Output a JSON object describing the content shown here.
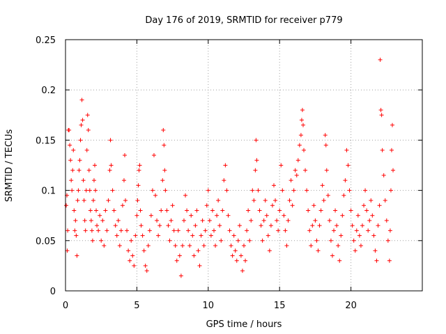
{
  "chart_data": {
    "type": "scatter",
    "title": "Day 176 of 2019, SRMTID for receiver p779",
    "xlabel": "GPS time / hours",
    "ylabel": "SRMTID / TECUs",
    "xlim": [
      0,
      25
    ],
    "ylim": [
      0,
      0.25
    ],
    "xticks": [
      0,
      5,
      10,
      15,
      20
    ],
    "yticks": [
      0,
      0.05,
      0.1,
      0.15,
      0.2,
      0.25
    ],
    "xtick_labels": [
      "0",
      "5",
      "10",
      "15",
      "20"
    ],
    "ytick_labels": [
      "0",
      "0.05",
      "0.1",
      "0.15",
      "0.2",
      "0.25"
    ],
    "grid": true,
    "marker": "+",
    "color": "#ff0000",
    "series": [
      {
        "name": "SRMTID",
        "points": [
          [
            0.05,
            0.085
          ],
          [
            0.1,
            0.095
          ],
          [
            0.12,
            0.04
          ],
          [
            0.15,
            0.06
          ],
          [
            0.2,
            0.16
          ],
          [
            0.25,
            0.16
          ],
          [
            0.3,
            0.145
          ],
          [
            0.35,
            0.13
          ],
          [
            0.4,
            0.11
          ],
          [
            0.45,
            0.1
          ],
          [
            0.5,
            0.12
          ],
          [
            0.55,
            0.14
          ],
          [
            0.6,
            0.08
          ],
          [
            0.65,
            0.06
          ],
          [
            0.7,
            0.07
          ],
          [
            0.75,
            0.055
          ],
          [
            0.8,
            0.035
          ],
          [
            0.85,
            0.09
          ],
          [
            0.9,
            0.1
          ],
          [
            0.95,
            0.12
          ],
          [
            1.0,
            0.13
          ],
          [
            1.05,
            0.15
          ],
          [
            1.1,
            0.165
          ],
          [
            1.15,
            0.19
          ],
          [
            1.2,
            0.17
          ],
          [
            1.25,
            0.11
          ],
          [
            1.3,
            0.09
          ],
          [
            1.35,
            0.07
          ],
          [
            1.4,
            0.06
          ],
          [
            1.45,
            0.1
          ],
          [
            1.5,
            0.14
          ],
          [
            1.55,
            0.175
          ],
          [
            1.6,
            0.16
          ],
          [
            1.65,
            0.12
          ],
          [
            1.7,
            0.1
          ],
          [
            1.75,
            0.08
          ],
          [
            1.8,
            0.07
          ],
          [
            1.85,
            0.06
          ],
          [
            1.9,
            0.05
          ],
          [
            1.95,
            0.09
          ],
          [
            2.0,
            0.11
          ],
          [
            2.05,
            0.125
          ],
          [
            2.1,
            0.1
          ],
          [
            2.15,
            0.08
          ],
          [
            2.2,
            0.065
          ],
          [
            2.3,
            0.06
          ],
          [
            2.4,
            0.075
          ],
          [
            2.5,
            0.05
          ],
          [
            2.6,
            0.07
          ],
          [
            2.7,
            0.045
          ],
          [
            2.8,
            0.08
          ],
          [
            2.9,
            0.06
          ],
          [
            3.0,
            0.09
          ],
          [
            3.1,
            0.12
          ],
          [
            3.15,
            0.15
          ],
          [
            3.2,
            0.125
          ],
          [
            3.3,
            0.1
          ],
          [
            3.4,
            0.08
          ],
          [
            3.5,
            0.065
          ],
          [
            3.6,
            0.055
          ],
          [
            3.7,
            0.07
          ],
          [
            3.8,
            0.045
          ],
          [
            3.9,
            0.06
          ],
          [
            4.0,
            0.085
          ],
          [
            4.1,
            0.11
          ],
          [
            4.15,
            0.135
          ],
          [
            4.2,
            0.09
          ],
          [
            4.3,
            0.06
          ],
          [
            4.4,
            0.04
          ],
          [
            4.5,
            0.03
          ],
          [
            4.6,
            0.05
          ],
          [
            4.7,
            0.035
          ],
          [
            4.8,
            0.025
          ],
          [
            4.9,
            0.055
          ],
          [
            5.0,
            0.075
          ],
          [
            5.05,
            0.09
          ],
          [
            5.1,
            0.105
          ],
          [
            5.15,
            0.12
          ],
          [
            5.2,
            0.125
          ],
          [
            5.25,
            0.08
          ],
          [
            5.3,
            0.065
          ],
          [
            5.4,
            0.055
          ],
          [
            5.5,
            0.04
          ],
          [
            5.6,
            0.025
          ],
          [
            5.7,
            0.02
          ],
          [
            5.8,
            0.045
          ],
          [
            5.9,
            0.06
          ],
          [
            6.0,
            0.075
          ],
          [
            6.1,
            0.1
          ],
          [
            6.2,
            0.135
          ],
          [
            6.3,
            0.095
          ],
          [
            6.4,
            0.07
          ],
          [
            6.5,
            0.055
          ],
          [
            6.6,
            0.065
          ],
          [
            6.7,
            0.08
          ],
          [
            6.8,
            0.11
          ],
          [
            6.85,
            0.16
          ],
          [
            6.9,
            0.145
          ],
          [
            6.95,
            0.12
          ],
          [
            7.0,
            0.1
          ],
          [
            7.1,
            0.08
          ],
          [
            7.2,
            0.065
          ],
          [
            7.3,
            0.05
          ],
          [
            7.4,
            0.07
          ],
          [
            7.5,
            0.085
          ],
          [
            7.6,
            0.06
          ],
          [
            7.7,
            0.045
          ],
          [
            7.8,
            0.03
          ],
          [
            7.9,
            0.06
          ],
          [
            8.0,
            0.035
          ],
          [
            8.1,
            0.015
          ],
          [
            8.2,
            0.045
          ],
          [
            8.3,
            0.07
          ],
          [
            8.4,
            0.095
          ],
          [
            8.5,
            0.08
          ],
          [
            8.6,
            0.06
          ],
          [
            8.7,
            0.045
          ],
          [
            8.8,
            0.075
          ],
          [
            8.9,
            0.055
          ],
          [
            9.0,
            0.035
          ],
          [
            9.1,
            0.065
          ],
          [
            9.2,
            0.08
          ],
          [
            9.3,
            0.04
          ],
          [
            9.4,
            0.025
          ],
          [
            9.5,
            0.055
          ],
          [
            9.6,
            0.07
          ],
          [
            9.7,
            0.045
          ],
          [
            9.8,
            0.06
          ],
          [
            9.9,
            0.085
          ],
          [
            10.0,
            0.1
          ],
          [
            10.1,
            0.07
          ],
          [
            10.2,
            0.055
          ],
          [
            10.3,
            0.08
          ],
          [
            10.4,
            0.06
          ],
          [
            10.5,
            0.045
          ],
          [
            10.6,
            0.075
          ],
          [
            10.7,
            0.09
          ],
          [
            10.8,
            0.065
          ],
          [
            10.9,
            0.05
          ],
          [
            11.0,
            0.08
          ],
          [
            11.1,
            0.11
          ],
          [
            11.2,
            0.125
          ],
          [
            11.3,
            0.1
          ],
          [
            11.4,
            0.075
          ],
          [
            11.5,
            0.06
          ],
          [
            11.6,
            0.045
          ],
          [
            11.7,
            0.035
          ],
          [
            11.8,
            0.055
          ],
          [
            11.9,
            0.04
          ],
          [
            12.0,
            0.03
          ],
          [
            12.1,
            0.05
          ],
          [
            12.2,
            0.065
          ],
          [
            12.3,
            0.035
          ],
          [
            12.4,
            0.02
          ],
          [
            12.5,
            0.045
          ],
          [
            12.6,
            0.03
          ],
          [
            12.7,
            0.06
          ],
          [
            12.8,
            0.08
          ],
          [
            12.9,
            0.05
          ],
          [
            13.0,
            0.07
          ],
          [
            13.1,
            0.1
          ],
          [
            13.2,
            0.09
          ],
          [
            13.3,
            0.12
          ],
          [
            13.35,
            0.15
          ],
          [
            13.4,
            0.13
          ],
          [
            13.5,
            0.1
          ],
          [
            13.6,
            0.08
          ],
          [
            13.7,
            0.065
          ],
          [
            13.8,
            0.05
          ],
          [
            13.9,
            0.07
          ],
          [
            14.0,
            0.09
          ],
          [
            14.1,
            0.075
          ],
          [
            14.2,
            0.055
          ],
          [
            14.3,
            0.04
          ],
          [
            14.4,
            0.065
          ],
          [
            14.5,
            0.085
          ],
          [
            14.6,
            0.105
          ],
          [
            14.7,
            0.09
          ],
          [
            14.8,
            0.07
          ],
          [
            14.9,
            0.06
          ],
          [
            15.0,
            0.08
          ],
          [
            15.1,
            0.125
          ],
          [
            15.2,
            0.1
          ],
          [
            15.3,
            0.075
          ],
          [
            15.4,
            0.06
          ],
          [
            15.5,
            0.045
          ],
          [
            15.6,
            0.07
          ],
          [
            15.7,
            0.09
          ],
          [
            15.8,
            0.11
          ],
          [
            15.9,
            0.085
          ],
          [
            16.0,
            0.1
          ],
          [
            16.1,
            0.12
          ],
          [
            16.2,
            0.115
          ],
          [
            16.3,
            0.13
          ],
          [
            16.4,
            0.145
          ],
          [
            16.5,
            0.155
          ],
          [
            16.55,
            0.17
          ],
          [
            16.6,
            0.18
          ],
          [
            16.65,
            0.165
          ],
          [
            16.7,
            0.14
          ],
          [
            16.8,
            0.12
          ],
          [
            16.9,
            0.1
          ],
          [
            17.0,
            0.08
          ],
          [
            17.1,
            0.06
          ],
          [
            17.2,
            0.045
          ],
          [
            17.3,
            0.065
          ],
          [
            17.4,
            0.085
          ],
          [
            17.5,
            0.07
          ],
          [
            17.6,
            0.05
          ],
          [
            17.7,
            0.04
          ],
          [
            17.8,
            0.065
          ],
          [
            17.9,
            0.08
          ],
          [
            18.0,
            0.105
          ],
          [
            18.1,
            0.09
          ],
          [
            18.2,
            0.155
          ],
          [
            18.25,
            0.145
          ],
          [
            18.3,
            0.12
          ],
          [
            18.4,
            0.095
          ],
          [
            18.5,
            0.07
          ],
          [
            18.6,
            0.05
          ],
          [
            18.7,
            0.035
          ],
          [
            18.8,
            0.06
          ],
          [
            18.9,
            0.08
          ],
          [
            19.0,
            0.065
          ],
          [
            19.1,
            0.045
          ],
          [
            19.2,
            0.03
          ],
          [
            19.3,
            0.055
          ],
          [
            19.4,
            0.075
          ],
          [
            19.5,
            0.095
          ],
          [
            19.6,
            0.11
          ],
          [
            19.7,
            0.14
          ],
          [
            19.8,
            0.125
          ],
          [
            19.9,
            0.1
          ],
          [
            20.0,
            0.08
          ],
          [
            20.1,
            0.065
          ],
          [
            20.2,
            0.05
          ],
          [
            20.3,
            0.04
          ],
          [
            20.4,
            0.06
          ],
          [
            20.5,
            0.075
          ],
          [
            20.6,
            0.055
          ],
          [
            20.7,
            0.045
          ],
          [
            20.8,
            0.065
          ],
          [
            20.9,
            0.085
          ],
          [
            21.0,
            0.1
          ],
          [
            21.1,
            0.08
          ],
          [
            21.2,
            0.06
          ],
          [
            21.3,
            0.07
          ],
          [
            21.4,
            0.09
          ],
          [
            21.5,
            0.075
          ],
          [
            21.6,
            0.055
          ],
          [
            21.7,
            0.04
          ],
          [
            21.8,
            0.03
          ],
          [
            21.9,
            0.065
          ],
          [
            22.0,
            0.085
          ],
          [
            22.05,
            0.23
          ],
          [
            22.1,
            0.18
          ],
          [
            22.15,
            0.175
          ],
          [
            22.2,
            0.14
          ],
          [
            22.3,
            0.115
          ],
          [
            22.4,
            0.09
          ],
          [
            22.5,
            0.07
          ],
          [
            22.6,
            0.05
          ],
          [
            22.7,
            0.03
          ],
          [
            22.75,
            0.06
          ],
          [
            22.8,
            0.1
          ],
          [
            22.85,
            0.14
          ],
          [
            22.9,
            0.165
          ],
          [
            22.95,
            0.12
          ]
        ]
      }
    ]
  }
}
